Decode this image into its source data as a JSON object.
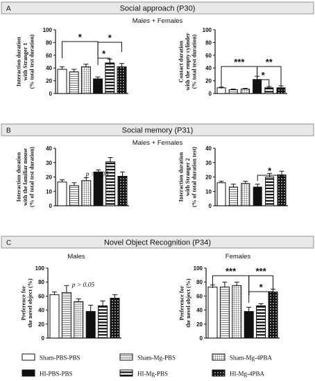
{
  "sections": [
    {
      "letter": "A",
      "title": "Social approach (P30)"
    },
    {
      "letter": "B",
      "title": "Social memory (P31)"
    },
    {
      "letter": "C",
      "title": "Novel Object Recognition (P34)"
    }
  ],
  "subtitles": {
    "a": "Males + Females",
    "b": "Males + Females",
    "c_left": "Males",
    "c_right": "Females"
  },
  "legend": [
    {
      "label": "Sham-PBS-PBS",
      "pattern": "white"
    },
    {
      "label": "Sham-Mg-PBS",
      "pattern": "hstripe"
    },
    {
      "label": "Sham-Mg-4PBA",
      "pattern": "grid"
    },
    {
      "label": "HI-PBS-PBS",
      "pattern": "black"
    },
    {
      "label": "HI-Mg-PBS",
      "pattern": "hstripe_thick"
    },
    {
      "label": "HI-Mg-4PBA",
      "pattern": "checker"
    }
  ],
  "chart_data": [
    {
      "type": "bar",
      "panel": "A-left",
      "ylabel": [
        "Interaction duration",
        "with Stranger 1",
        "(% total test duration)"
      ],
      "ylim": [
        0,
        100
      ],
      "yticks": [
        0,
        20,
        40,
        60,
        80,
        100
      ],
      "categories": [
        "Sham-PBS-PBS",
        "Sham-Mg-PBS",
        "Sham-Mg-4PBA",
        "HI-PBS-PBS",
        "HI-Mg-PBS",
        "HI-Mg-4PBA"
      ],
      "values": [
        38,
        34,
        42,
        23,
        48,
        42
      ],
      "errors": [
        4,
        4,
        4,
        3,
        6,
        5
      ],
      "annotation": "",
      "significance": [
        {
          "from": 0,
          "to": 3,
          "label": "*"
        },
        {
          "from": 3,
          "to": 5,
          "label": "*"
        },
        {
          "from": 3,
          "to": 4,
          "label": "*"
        }
      ]
    },
    {
      "type": "bar",
      "panel": "A-right",
      "ylabel": [
        "Contact duration",
        "with the empty cylinder",
        "(% total test duration)"
      ],
      "ylim": [
        0,
        100
      ],
      "yticks": [
        0,
        20,
        40,
        60,
        80,
        100
      ],
      "categories": [
        "Sham-PBS-PBS",
        "Sham-Mg-PBS",
        "Sham-Mg-4PBA",
        "HI-PBS-PBS",
        "HI-Mg-PBS",
        "HI-Mg-4PBA"
      ],
      "values": [
        9,
        6,
        7,
        22,
        9,
        9
      ],
      "errors": [
        1,
        1,
        1,
        5,
        2,
        3
      ],
      "annotation": "",
      "significance": [
        {
          "from": 0,
          "to": 3,
          "label": "***"
        },
        {
          "from": 3,
          "to": 5,
          "label": "**"
        },
        {
          "from": 3,
          "to": 4,
          "label": "*"
        }
      ]
    },
    {
      "type": "bar",
      "panel": "B-left",
      "ylabel": [
        "Interaction duration",
        "with the familiar mouse",
        "(% of total test duration)"
      ],
      "ylim": [
        0,
        40
      ],
      "yticks": [
        0,
        10,
        20,
        30,
        40
      ],
      "categories": [
        "Sham-PBS-PBS",
        "Sham-Mg-PBS",
        "Sham-Mg-4PBA",
        "HI-PBS-PBS",
        "HI-Mg-PBS",
        "HI-Mg-4PBA"
      ],
      "values": [
        16.5,
        14,
        17.5,
        23.5,
        30.5,
        20.5
      ],
      "errors": [
        1.5,
        2,
        2,
        1.5,
        3,
        3
      ],
      "annotation": "p > 0.05",
      "significance": []
    },
    {
      "type": "bar",
      "panel": "B-right",
      "ylabel": [
        "Interaction duration",
        "with Stranger 2",
        "(% of total duration test)"
      ],
      "ylim": [
        0,
        40
      ],
      "yticks": [
        0,
        10,
        20,
        30,
        40
      ],
      "categories": [
        "Sham-PBS-PBS",
        "Sham-Mg-PBS",
        "Sham-Mg-4PBA",
        "HI-PBS-PBS",
        "HI-Mg-PBS",
        "HI-Mg-4PBA"
      ],
      "values": [
        16,
        13,
        15.5,
        13,
        20,
        21.5
      ],
      "errors": [
        1,
        2,
        1.5,
        2,
        2.5,
        2.5
      ],
      "annotation": "",
      "significance": [
        {
          "from": 3,
          "to": 5,
          "label": "*"
        }
      ]
    },
    {
      "type": "bar",
      "panel": "C-left",
      "ylabel": [
        "Preference for",
        "the novel object (%)"
      ],
      "ylim": [
        0,
        100
      ],
      "yticks": [
        0,
        20,
        40,
        60,
        80,
        100
      ],
      "categories": [
        "Sham-PBS-PBS",
        "Sham-Mg-PBS",
        "Sham-Mg-4PBA",
        "HI-PBS-PBS",
        "HI-Mg-PBS",
        "HI-Mg-4PBA"
      ],
      "values": [
        62,
        65,
        52,
        38,
        46,
        57
      ],
      "errors": [
        4,
        10,
        4,
        9,
        7,
        5
      ],
      "annotation": "p > 0.05",
      "significance": []
    },
    {
      "type": "bar",
      "panel": "C-right",
      "ylabel": [
        "Preference for",
        "the novel object (%)"
      ],
      "ylim": [
        0,
        100
      ],
      "yticks": [
        0,
        20,
        40,
        60,
        80,
        100
      ],
      "categories": [
        "Sham-PBS-PBS",
        "Sham-Mg-PBS",
        "Sham-Mg-4PBA",
        "HI-PBS-PBS",
        "HI-Mg-PBS",
        "HI-Mg-4PBA"
      ],
      "values": [
        73,
        73,
        75,
        38,
        46,
        66
      ],
      "errors": [
        3,
        7,
        5,
        6,
        3,
        4
      ],
      "annotation": "",
      "significance": [
        {
          "from": 0,
          "to": 3,
          "label": "***"
        },
        {
          "from": 3,
          "to": 5,
          "label": "***"
        },
        {
          "from": 3,
          "to": 5,
          "label": "*"
        }
      ]
    }
  ]
}
